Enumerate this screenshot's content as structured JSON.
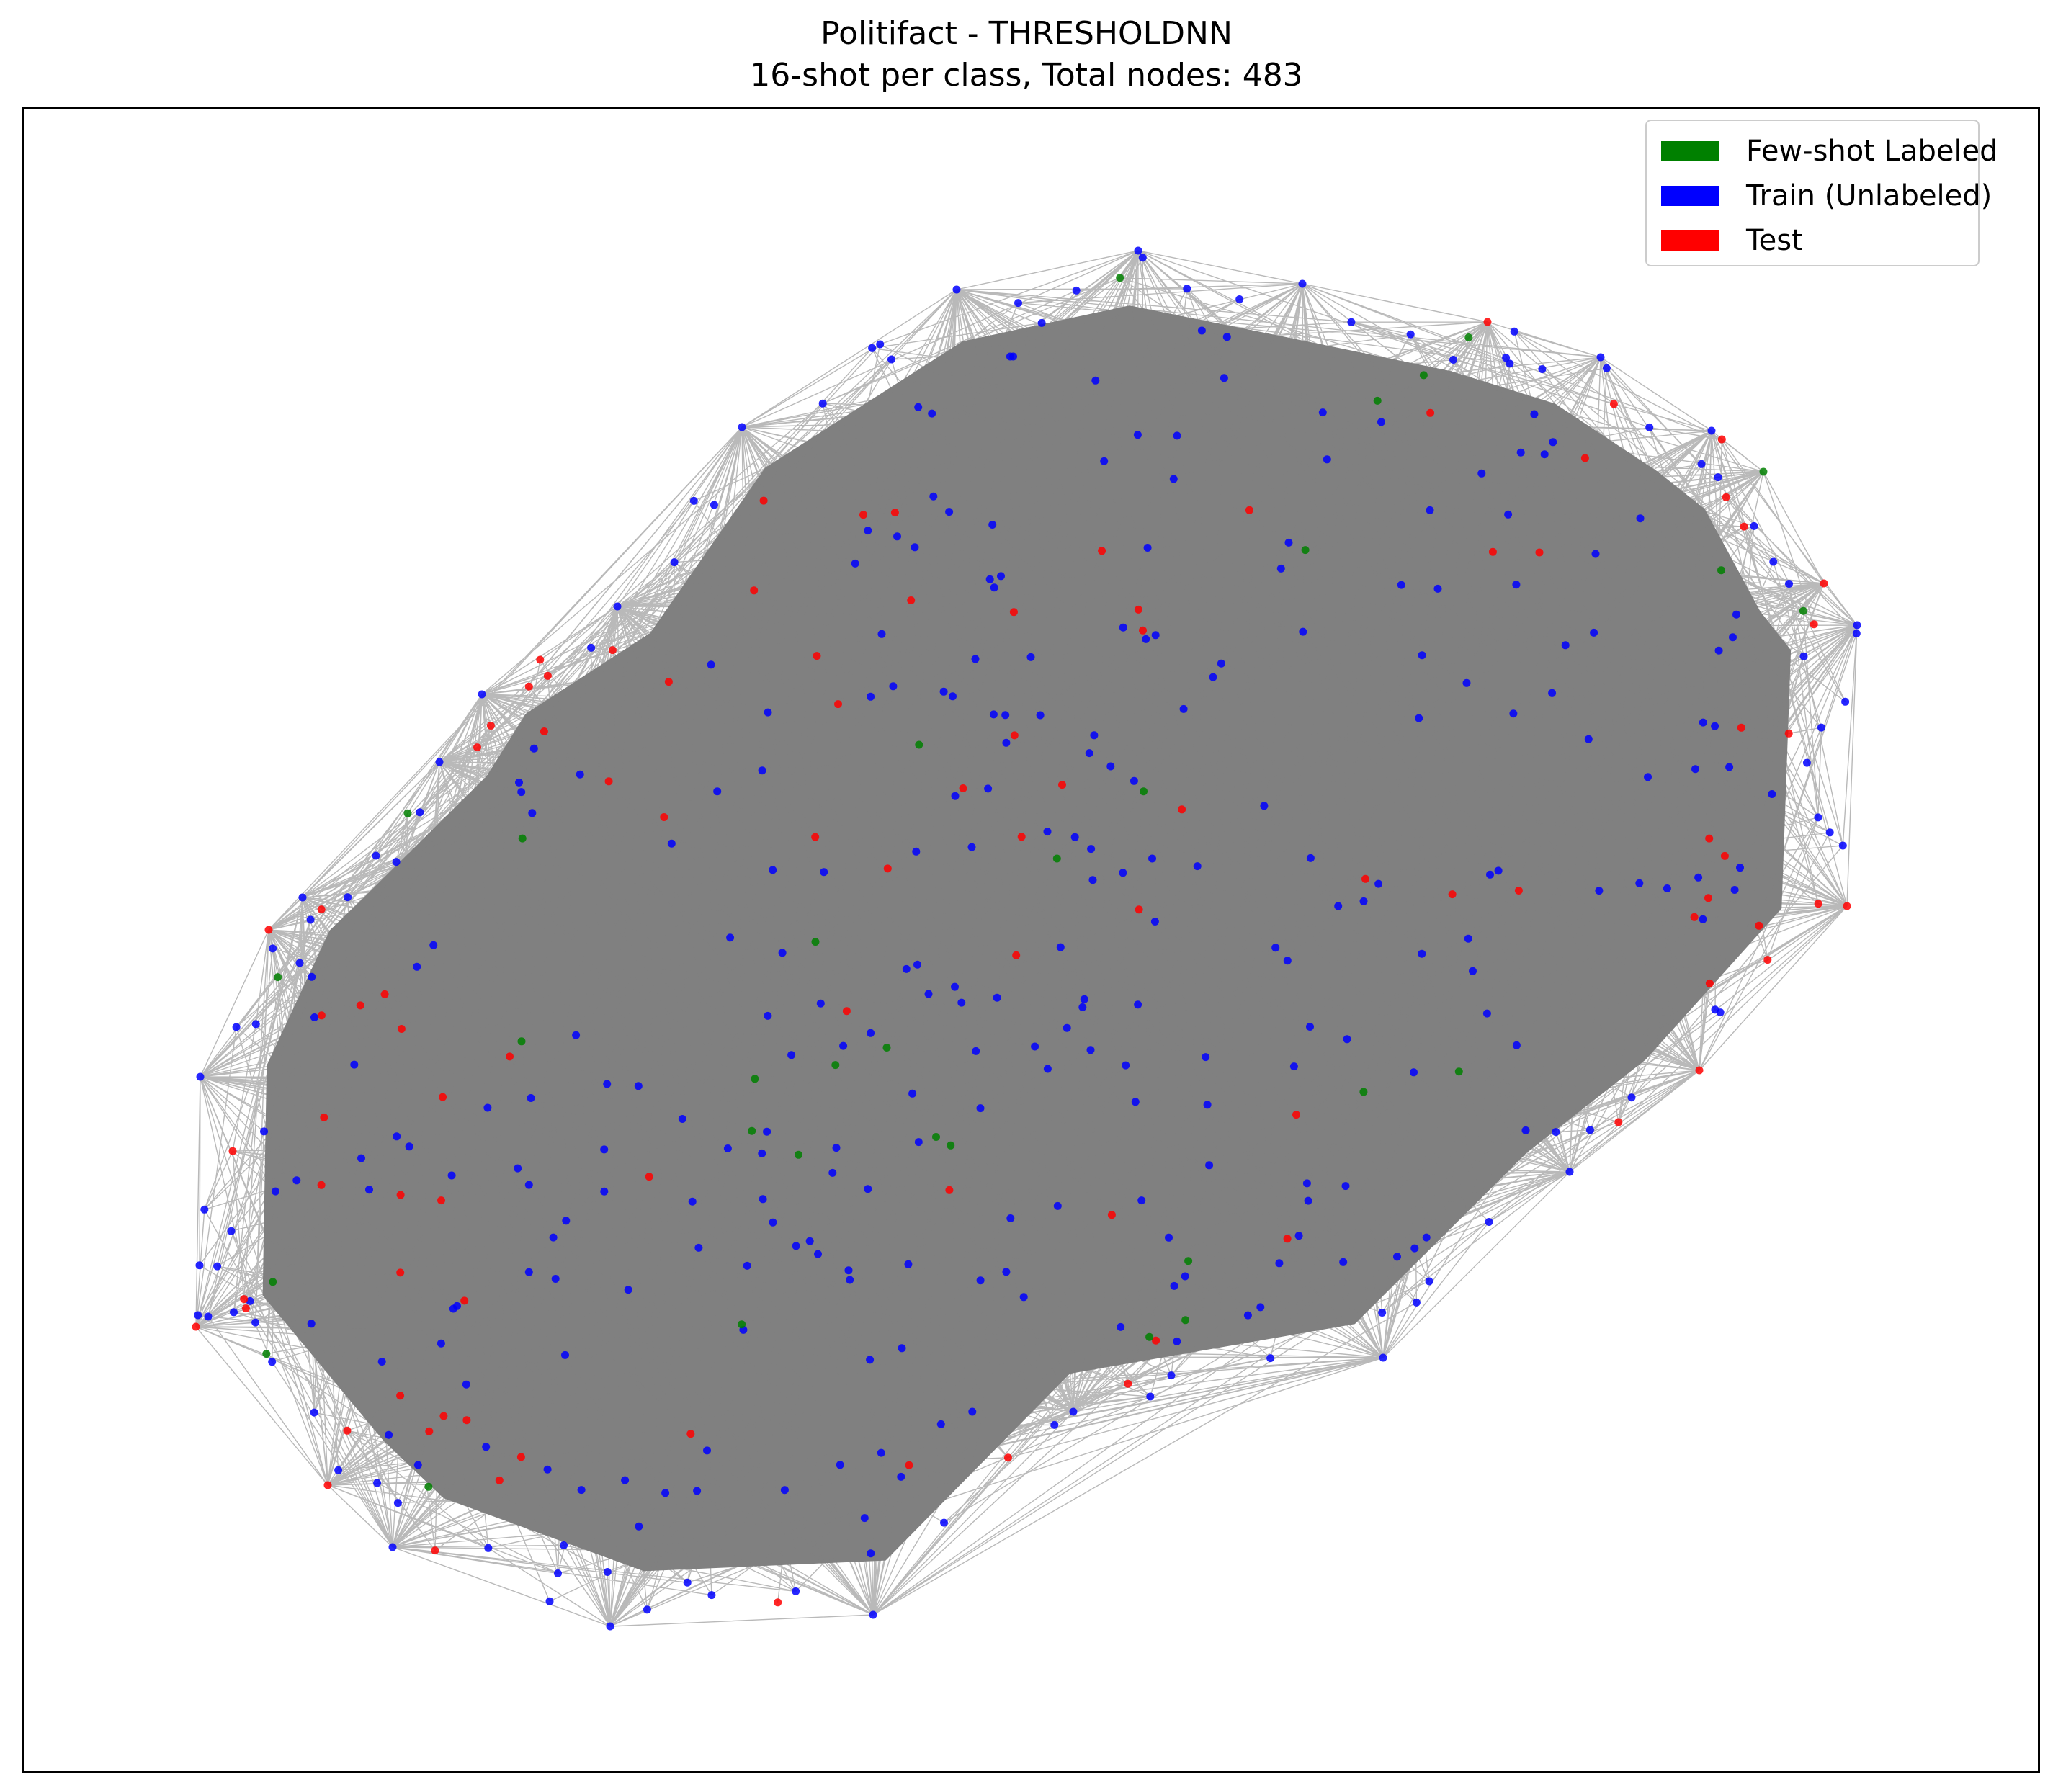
{
  "title": {
    "line1": "Politifact - THRESHOLDNN",
    "line2": "16-shot per class, Total nodes: 483"
  },
  "legend": [
    {
      "label": "Few-shot Labeled",
      "color": "#008000"
    },
    {
      "label": "Train (Unlabeled)",
      "color": "#0000ff"
    },
    {
      "label": "Test",
      "color": "#ff0000"
    }
  ],
  "colors": {
    "edge": "#808080",
    "fewshot": "#008000",
    "train": "#0000ff",
    "test": "#ff0000"
  },
  "graph": {
    "total_nodes": 483,
    "shots_per_class": 16,
    "few_shot_count": 32,
    "edge_style": "dense k-NN edges, gray"
  }
}
